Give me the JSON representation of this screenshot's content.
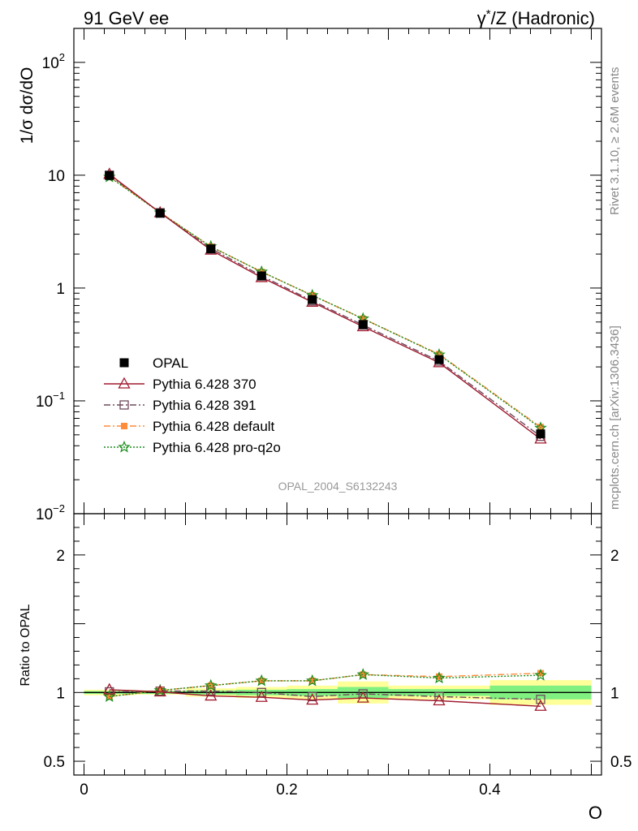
{
  "header": {
    "left_title": "91 GeV ee",
    "right_title_prefix": "γ",
    "right_title_sup": "*",
    "right_title_rest": "/Z (Hadronic)"
  },
  "side_labels": {
    "rivet": "Rivet 3.1.10, ≥ 2.6M events",
    "mcplots": "mcplots.cern.ch [arXiv:1306.3436]"
  },
  "reference": "OPAL_2004_S6132243",
  "colors": {
    "data": "#000000",
    "p370": "#a01a2e",
    "p391": "#6e4a5e",
    "pdefault": "#ff8c3a",
    "pq2o": "#1a8c1a",
    "band_yellow": "#ffff99",
    "band_green": "#80f080"
  },
  "chart_data": [
    {
      "type": "line",
      "panel": "main",
      "ylabel": "1/σ dσ/dO",
      "yscale": "log",
      "ylim": [
        0.01,
        200
      ],
      "xlim": [
        -0.01,
        0.51
      ],
      "yticks": [
        {
          "value": 0.01,
          "base": "10",
          "exp": "−2"
        },
        {
          "value": 0.1,
          "base": "10",
          "exp": "−1"
        },
        {
          "value": 1,
          "base": "1",
          "exp": ""
        },
        {
          "value": 10,
          "base": "10",
          "exp": ""
        },
        {
          "value": 100,
          "base": "10",
          "exp": "2"
        }
      ],
      "legend_position": "middle-left",
      "x": [
        0.025,
        0.075,
        0.125,
        0.175,
        0.225,
        0.275,
        0.35,
        0.45
      ],
      "series": [
        {
          "name": "OPAL",
          "key": "data",
          "marker": "square-filled",
          "values": [
            9.95,
            4.6,
            2.22,
            1.28,
            0.79,
            0.475,
            0.232,
            0.051
          ]
        },
        {
          "name": "Pythia 6.428 370",
          "key": "p370",
          "marker": "triangle-open",
          "dash": "",
          "values": [
            10.2,
            4.65,
            2.17,
            1.24,
            0.75,
            0.455,
            0.218,
            0.046
          ]
        },
        {
          "name": "Pythia 6.428 391",
          "key": "p391",
          "marker": "square-open",
          "dash": "8,3,2,3",
          "values": [
            10.0,
            4.65,
            2.25,
            1.28,
            0.77,
            0.47,
            0.225,
            0.0485
          ]
        },
        {
          "name": "Pythia 6.428 default",
          "key": "pdefault",
          "marker": "square-filled-small",
          "dash": "8,3,2,3",
          "values": [
            9.65,
            4.68,
            2.33,
            1.39,
            0.86,
            0.535,
            0.259,
            0.0585
          ]
        },
        {
          "name": "Pythia 6.428 pro-q2o",
          "key": "pq2o",
          "marker": "star",
          "dash": "2,2",
          "values": [
            9.65,
            4.65,
            2.33,
            1.39,
            0.86,
            0.535,
            0.256,
            0.0575
          ]
        }
      ]
    },
    {
      "type": "line",
      "panel": "ratio",
      "ylabel": "Ratio to OPAL",
      "xlabel": "O",
      "ylim": [
        0.4,
        2.3
      ],
      "yticks": [
        0.5,
        1,
        2
      ],
      "xticks": [
        0,
        0.2,
        0.4
      ],
      "bins": [
        [
          0.0,
          0.05
        ],
        [
          0.05,
          0.1
        ],
        [
          0.1,
          0.15
        ],
        [
          0.15,
          0.2
        ],
        [
          0.2,
          0.25
        ],
        [
          0.25,
          0.3
        ],
        [
          0.3,
          0.4
        ],
        [
          0.4,
          0.5
        ]
      ],
      "band_yellow": [
        [
          0.98,
          1.02
        ],
        [
          0.985,
          1.015
        ],
        [
          0.97,
          1.03
        ],
        [
          0.96,
          1.04
        ],
        [
          0.95,
          1.05
        ],
        [
          0.92,
          1.08
        ],
        [
          0.95,
          1.05
        ],
        [
          0.91,
          1.09
        ]
      ],
      "band_green": [
        [
          0.99,
          1.01
        ],
        [
          0.99,
          1.01
        ],
        [
          0.985,
          1.015
        ],
        [
          0.98,
          1.02
        ],
        [
          0.975,
          1.025
        ],
        [
          0.96,
          1.04
        ],
        [
          0.975,
          1.025
        ],
        [
          0.95,
          1.05
        ]
      ],
      "series": [
        {
          "name": "Pythia 6.428 370",
          "key": "p370",
          "values": [
            1.02,
            1.005,
            0.975,
            0.965,
            0.945,
            0.96,
            0.94,
            0.9
          ]
        },
        {
          "name": "Pythia 6.428 391",
          "key": "p391",
          "values": [
            1.005,
            1.01,
            1.01,
            1.0,
            0.97,
            0.99,
            0.97,
            0.95
          ]
        },
        {
          "name": "Pythia 6.428 default",
          "key": "pdefault",
          "values": [
            0.97,
            1.015,
            1.05,
            1.085,
            1.085,
            1.13,
            1.115,
            1.14
          ]
        },
        {
          "name": "Pythia 6.428 pro-q2o",
          "key": "pq2o",
          "values": [
            0.97,
            1.015,
            1.05,
            1.085,
            1.085,
            1.13,
            1.105,
            1.125
          ]
        }
      ]
    }
  ]
}
